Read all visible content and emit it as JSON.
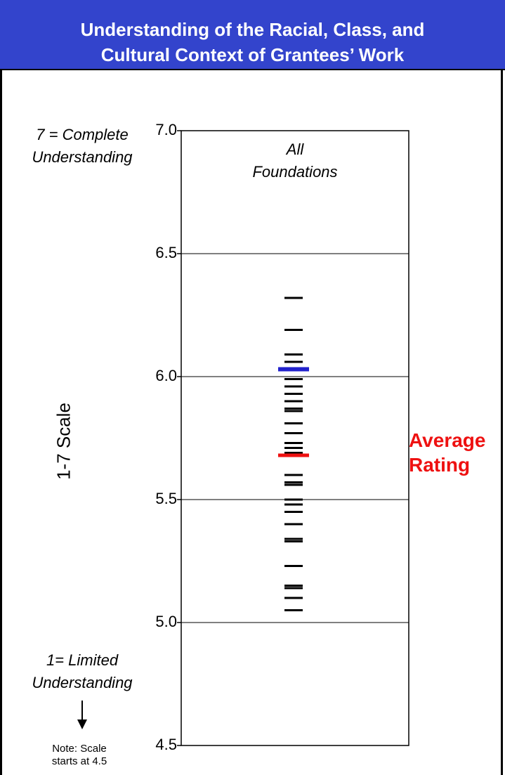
{
  "header": {
    "title_line1": "Understanding of the Racial, Class, and",
    "title_line2": "Cultural Context of Grantees’ Work"
  },
  "annotations": {
    "top_line1": "7 = Complete",
    "top_line2": "Understanding",
    "bottom_line1": "1= Limited",
    "bottom_line2": "Understanding",
    "note_line1": "Note: Scale",
    "note_line2": "starts at 4.5",
    "avg_line1": "Average",
    "avg_line2": "Rating"
  },
  "colors": {
    "title_bg": "#3344cc",
    "highlight": "#2222cc",
    "average": "#ee1111",
    "marks": "#000000"
  },
  "chart_data": {
    "type": "scatter",
    "ylabel": "1-7 Scale",
    "ylim": [
      4.5,
      7.0
    ],
    "yticks": [
      7.0,
      6.5,
      6.0,
      5.5,
      5.0,
      4.5
    ],
    "ytick_labels": [
      "7.0",
      "6.5",
      "6.0",
      "5.5",
      "5.0",
      "4.5"
    ],
    "grid_lines": [
      6.5,
      6.0,
      5.5,
      5.0
    ],
    "category": "All Foundations",
    "category_line1": "All",
    "category_line2": "Foundations",
    "values": [
      6.32,
      6.19,
      6.09,
      6.06,
      5.99,
      5.96,
      5.93,
      5.9,
      5.87,
      5.86,
      5.81,
      5.77,
      5.73,
      5.71,
      5.69,
      5.6,
      5.57,
      5.56,
      5.5,
      5.48,
      5.45,
      5.4,
      5.34,
      5.33,
      5.23,
      5.15,
      5.14,
      5.1,
      5.05
    ],
    "highlight_value": 6.03,
    "average_value": 5.68
  }
}
